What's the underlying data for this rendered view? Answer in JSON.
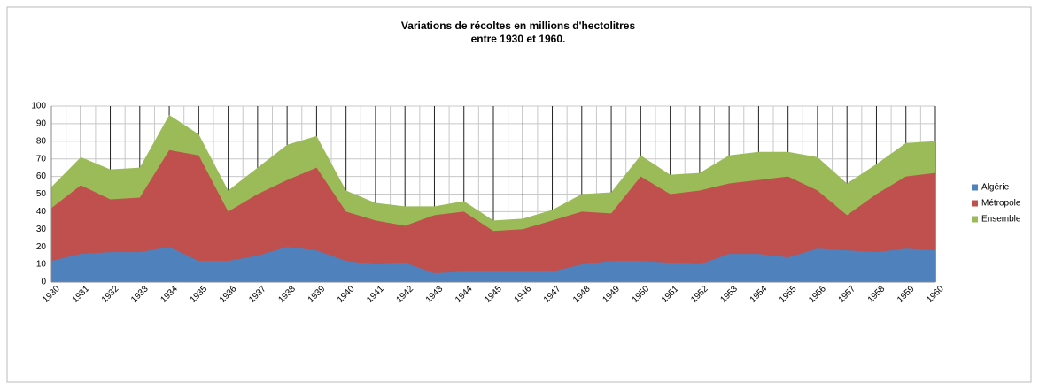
{
  "chart_data": {
    "type": "area",
    "title": [
      "Variations de récoltes en millions d'hectolitres",
      "entre 1930 et 1960."
    ],
    "categories": [
      "1930",
      "1931",
      "1932",
      "1933",
      "1934",
      "1935",
      "1936",
      "1937",
      "1938",
      "1939",
      "1940",
      "1941",
      "1942",
      "1943",
      "1944",
      "1945",
      "1946",
      "1947",
      "1948",
      "1949",
      "1950",
      "1951",
      "1952",
      "1953",
      "1954",
      "1955",
      "1956",
      "1957",
      "1958",
      "1959",
      "1960"
    ],
    "series": [
      {
        "name": "Algérie",
        "color": "#4f81bd",
        "values": [
          12,
          16,
          17,
          17,
          20,
          12,
          12,
          15,
          20,
          18,
          12,
          10,
          11,
          5,
          6,
          6,
          6,
          6,
          10,
          12,
          12,
          11,
          10,
          16,
          16,
          14,
          19,
          18,
          17,
          19,
          18
        ]
      },
      {
        "name": "Métropole",
        "color": "#c0504d",
        "values": [
          42,
          55,
          47,
          48,
          75,
          72,
          40,
          50,
          58,
          65,
          40,
          35,
          32,
          38,
          40,
          29,
          30,
          35,
          40,
          39,
          60,
          50,
          52,
          56,
          58,
          60,
          52,
          38,
          50,
          60,
          62
        ]
      },
      {
        "name": "Ensemble",
        "color": "#9bbb59",
        "values": [
          54,
          71,
          64,
          65,
          95,
          84,
          52,
          65,
          78,
          83,
          52,
          45,
          43,
          43,
          46,
          35,
          36,
          41,
          50,
          51,
          72,
          61,
          62,
          72,
          74,
          74,
          71,
          56,
          67,
          79,
          80
        ]
      }
    ],
    "ylim": [
      0,
      100
    ],
    "yticks": [
      0,
      10,
      20,
      30,
      40,
      50,
      60,
      70,
      80,
      90,
      100
    ],
    "grid": true,
    "legend": "right"
  }
}
